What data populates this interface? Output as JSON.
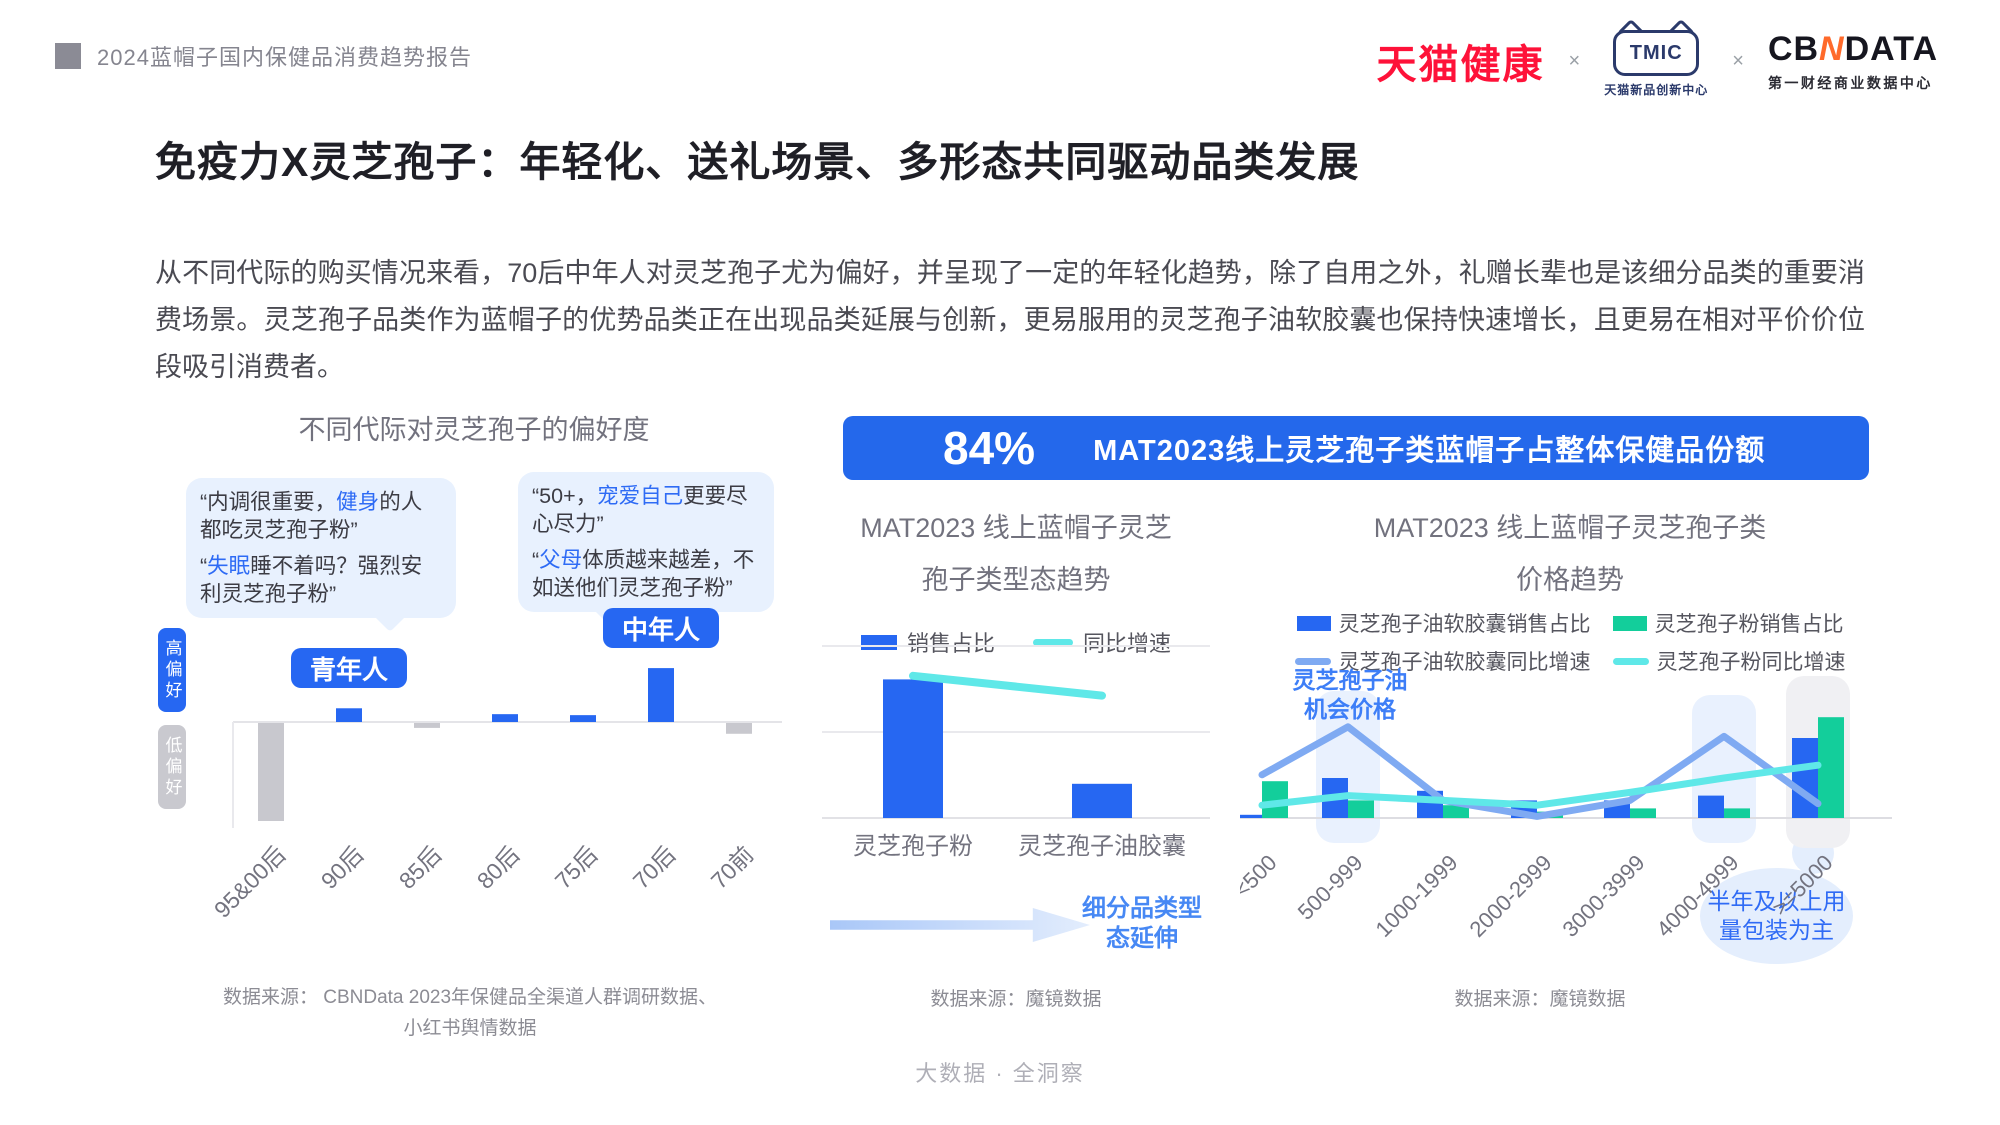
{
  "header": {
    "report_title": "2024蓝帽子国内保健品消费趋势报告",
    "logos": {
      "tmall_health": "天猫健康",
      "separator": "×",
      "tmic": "TMIC",
      "tmic_sub": "天猫新品创新中心",
      "cbn_left": "CB",
      "cbn_n": "N",
      "cbn_right": "DATA",
      "cbn_sub": "第一财经商业数据中心"
    }
  },
  "title": "免疫力X灵芝孢子：年轻化、送礼场景、多形态共同驱动品类发展",
  "paragraph": "从不同代际的购买情况来看，70后中年人对灵芝孢子尤为偏好，并呈现了一定的年轻化趋势，除了自用之外，礼赠长辈也是该细分品类的重要消费场景。灵芝孢子品类作为蓝帽子的优势品类正在出现品类延展与创新，更易服用的灵芝孢子油软胶囊也保持快速增长，且更易在相对平价价位段吸引消费者。",
  "banner": {
    "stat": "84%",
    "text": "MAT2023线上灵芝孢子类蓝帽子占整体保健品份额"
  },
  "left_chart": {
    "bubbles": [
      {
        "quotes": [
          {
            "segments": [
              {
                "text": "“内调很重要，"
              },
              {
                "text": "健身",
                "highlight": true
              },
              {
                "text": "的人都吃灵芝孢子粉”"
              }
            ]
          },
          {
            "segments": [
              {
                "text": "“"
              },
              {
                "text": "失眠",
                "highlight": true
              },
              {
                "text": "睡不着吗？强烈安利灵芝孢子粉”"
              }
            ]
          }
        ]
      },
      {
        "quotes": [
          {
            "segments": [
              {
                "text": "“50+，"
              },
              {
                "text": "宠爱自己",
                "highlight": true
              },
              {
                "text": "更要尽心尽力”"
              }
            ]
          },
          {
            "segments": [
              {
                "text": "“"
              },
              {
                "text": "父母",
                "highlight": true
              },
              {
                "text": "体质越来越差，不如送他们灵芝孢子粉”"
              }
            ]
          }
        ]
      }
    ]
  },
  "footer": "大数据 · 全洞察",
  "colors": {
    "primary_blue": "#2667F2",
    "banner_blue": "#2468EB",
    "green": "#13CE9B",
    "cyan": "#5FE8E8",
    "periwinkle": "#7FAAF2",
    "gray_bar": "#C8C8CE",
    "highlight_blue": "#E9F1FE",
    "highlight_gray": "#F0F0F3",
    "bubble_bg": "#E8F1FE",
    "tmall_red": "#FE1239",
    "tmic_navy": "#2B3A6B",
    "cbn_orange": "#FF6A2B"
  },
  "chart_data": [
    {
      "type": "bar",
      "title": "不同代际对灵芝孢子的偏好度",
      "categories": [
        "95&00后",
        "90后",
        "85后",
        "80后",
        "75后",
        "70后",
        "70前"
      ],
      "values": [
        -100,
        14,
        -5,
        8,
        7,
        55,
        -11
      ],
      "values_estimated": true,
      "positive_color": "#2667F2",
      "negative_color": "#C8C8CE",
      "badges": [
        {
          "label": "青年人",
          "category_index": 1
        },
        {
          "label": "中年人",
          "category_index": 5
        }
      ],
      "axis_labels": {
        "high": "高偏好",
        "low": "低偏好"
      },
      "source_lines": [
        "数据来源： CBNData 2023年保健品全渠道人群调研数据、",
        "小红书舆情数据"
      ]
    },
    {
      "type": "bar+line",
      "title_lines": [
        "MAT2023 线上蓝帽子灵芝",
        "孢子类型态趋势"
      ],
      "categories": [
        "灵芝孢子粉",
        "灵芝孢子油胶囊"
      ],
      "series": [
        {
          "name": "销售占比",
          "type": "bar",
          "color": "#2667F2",
          "values": [
            77,
            19
          ]
        },
        {
          "name": "同比增速",
          "type": "line",
          "color": "#5FE8E8",
          "values": [
            79,
            68
          ]
        }
      ],
      "values_estimated": true,
      "grid": true,
      "arrow_label": "细分品类型态延伸",
      "source": "数据来源：魔镜数据"
    },
    {
      "type": "grouped-bar+line",
      "title_lines": [
        "MAT2023 线上蓝帽子灵芝孢子类",
        "价格趋势"
      ],
      "categories": [
        "<500",
        "500-999",
        "1000-1999",
        "2000-2999",
        "3000-3999",
        "4000-4999",
        ">=5000"
      ],
      "series": [
        {
          "name": "灵芝孢子油软胶囊销售占比",
          "type": "bar",
          "color": "#2667F2",
          "values": [
            2,
            25,
            17,
            11,
            11,
            14,
            50
          ]
        },
        {
          "name": "灵芝孢子粉销售占比",
          "type": "bar",
          "color": "#13CE9B",
          "values": [
            23,
            11,
            8,
            4,
            6,
            6,
            63
          ]
        },
        {
          "name": "灵芝孢子油软胶囊同比增速",
          "type": "line",
          "color": "#7FAAF2",
          "values": [
            27,
            57,
            11,
            1,
            11,
            51,
            9
          ]
        },
        {
          "name": "灵芝孢子粉同比增速",
          "type": "line",
          "color": "#5FE8E8",
          "values": [
            8,
            14,
            11,
            8,
            16,
            25,
            33
          ]
        }
      ],
      "values_estimated": true,
      "highlights": [
        {
          "category": "500-999",
          "color": "#E9F1FE"
        },
        {
          "category": "4000-4999",
          "color": "#E9F1FE"
        },
        {
          "category": ">=5000",
          "color": "#F0F0F3"
        }
      ],
      "annotation_lines": [
        "灵芝孢子油",
        "机会价格"
      ],
      "callout_lines": [
        "半年及以上用",
        "量包装为主"
      ],
      "source": "数据来源：魔镜数据"
    }
  ]
}
